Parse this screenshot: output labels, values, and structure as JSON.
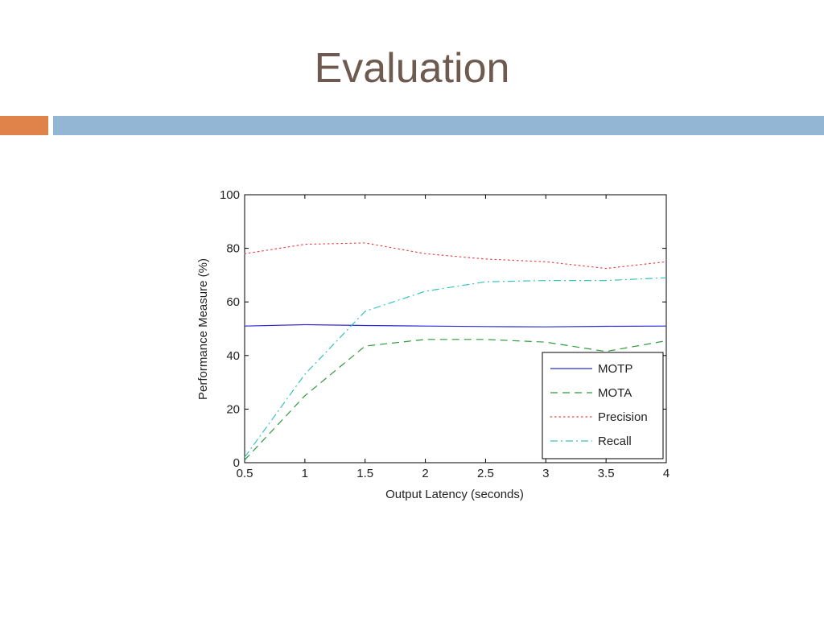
{
  "slide": {
    "title": "Evaluation",
    "colors": {
      "title": "#6e5a4e",
      "accent_bar": "#e0834a",
      "main_bar": "#93b6d5"
    }
  },
  "chart_data": {
    "type": "line",
    "title": "",
    "xlabel": "Output Latency (seconds)",
    "ylabel": "Performance Measure (%)",
    "xlim": [
      0.5,
      4
    ],
    "ylim": [
      0,
      100
    ],
    "x_ticks": [
      "0.5",
      "1",
      "1.5",
      "2",
      "2.5",
      "3",
      "3.5",
      "4"
    ],
    "y_ticks": [
      "0",
      "20",
      "40",
      "60",
      "80",
      "100"
    ],
    "grid": false,
    "legend_position": "bottom-right",
    "x": [
      0.5,
      1,
      1.5,
      2,
      2.5,
      3,
      3.5,
      4
    ],
    "series": [
      {
        "name": "MOTP",
        "values": [
          51,
          51.5,
          51.2,
          51,
          50.8,
          50.7,
          50.9,
          51
        ],
        "color": "#2b2bd4",
        "style": "solid"
      },
      {
        "name": "MOTA",
        "values": [
          1,
          25,
          43.5,
          46,
          46,
          45,
          41.5,
          45.5
        ],
        "color": "#2e9a3e",
        "style": "dashed"
      },
      {
        "name": "Precision",
        "values": [
          78,
          81.5,
          82,
          78,
          76,
          75,
          72.5,
          75
        ],
        "color": "#e8404a",
        "style": "dotted"
      },
      {
        "name": "Recall",
        "values": [
          2,
          33,
          56.5,
          64,
          67.5,
          68,
          68,
          69
        ],
        "color": "#39c2c2",
        "style": "dashdot"
      }
    ]
  }
}
